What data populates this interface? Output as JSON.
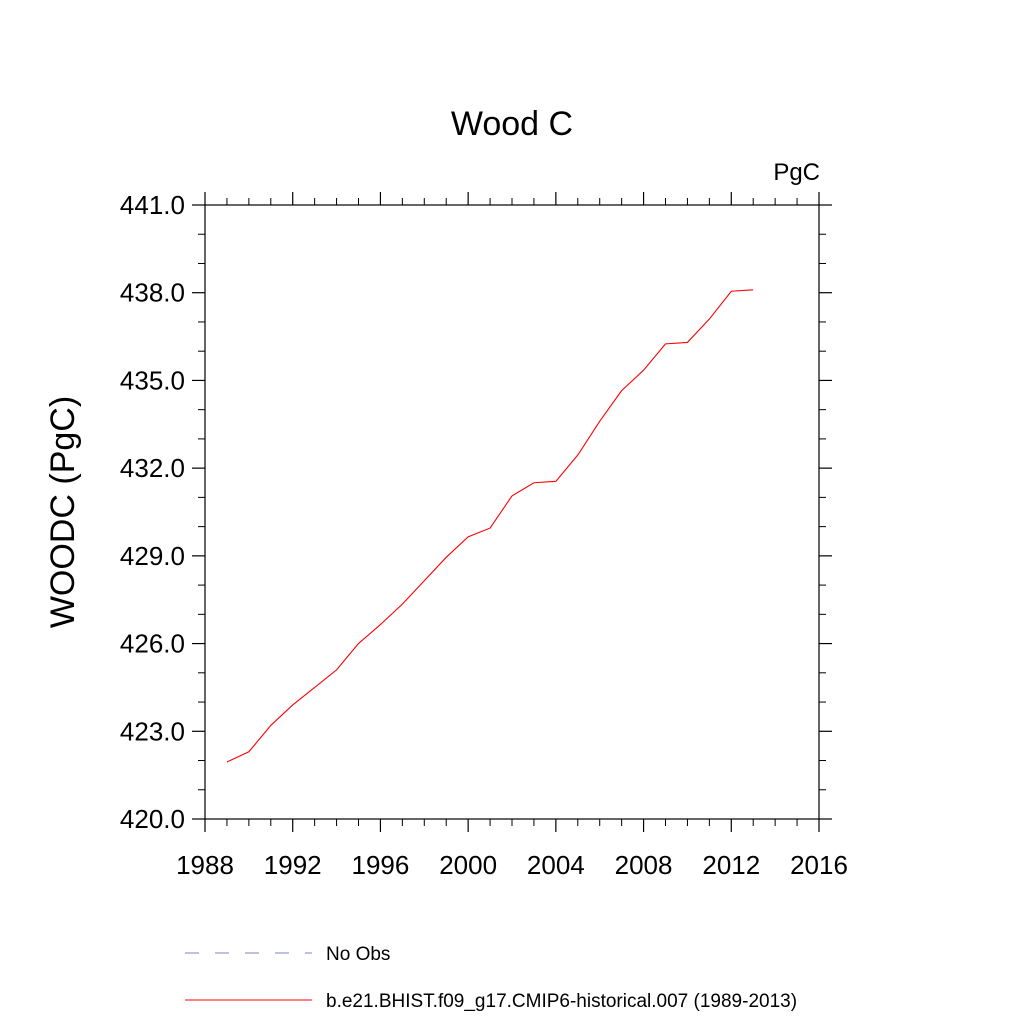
{
  "chart_data": {
    "type": "line",
    "title": "Wood C",
    "units_label": "PgC",
    "xlabel": "",
    "ylabel": "WOODC  (PgC)",
    "xlim": [
      1988,
      2016
    ],
    "ylim": [
      420.0,
      441.0
    ],
    "x_ticks": [
      "1988",
      "1992",
      "1996",
      "2000",
      "2004",
      "2008",
      "2012",
      "2016"
    ],
    "y_ticks": [
      "420.0",
      "423.0",
      "426.0",
      "429.0",
      "432.0",
      "435.0",
      "438.0",
      "441.0"
    ],
    "grid": false,
    "legend_position": "bottom",
    "series": [
      {
        "name": "b.e21.BHIST.f09_g17.CMIP6-historical.007 (1989-2013)",
        "color": "#ff0000",
        "line_style": "solid",
        "x": [
          1989,
          1990,
          1991,
          1992,
          1993,
          1994,
          1995,
          1996,
          1997,
          1998,
          1999,
          2000,
          2001,
          2002,
          2003,
          2004,
          2005,
          2006,
          2007,
          2008,
          2009,
          2010,
          2011,
          2012,
          2013
        ],
        "y": [
          421.95,
          422.3,
          423.2,
          423.9,
          424.5,
          425.1,
          426.0,
          426.65,
          427.35,
          428.15,
          428.95,
          429.65,
          429.95,
          431.05,
          431.5,
          431.55,
          432.45,
          433.6,
          434.65,
          435.35,
          436.25,
          436.3,
          437.1,
          438.05,
          438.1
        ]
      }
    ],
    "legend": [
      {
        "label": "No Obs",
        "color": "#8080c0",
        "line_style": "dashed"
      },
      {
        "label": "b.e21.BHIST.f09_g17.CMIP6-historical.007 (1989-2013)",
        "color": "#ff0000",
        "line_style": "solid"
      }
    ]
  }
}
